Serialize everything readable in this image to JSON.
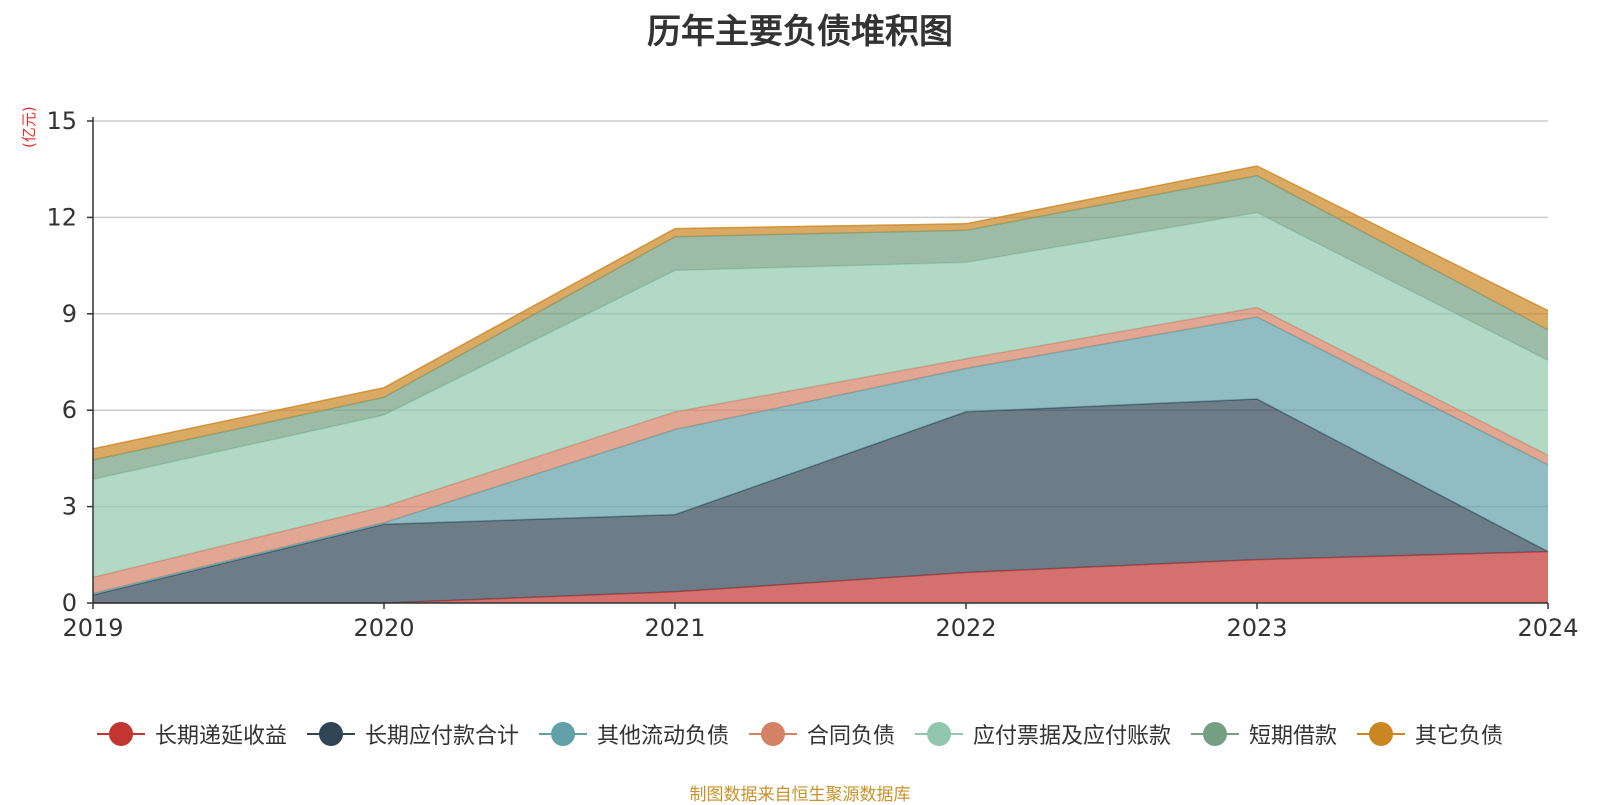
{
  "chart_data": {
    "type": "area",
    "stacked": true,
    "title": "历年主要负债堆积图",
    "ylabel": "(亿元)",
    "xlabel": "",
    "categories": [
      "2019",
      "2020",
      "2021",
      "2022",
      "2023",
      "2024"
    ],
    "ylim": [
      0,
      15
    ],
    "yticks": [
      0,
      3,
      6,
      9,
      12,
      15
    ],
    "grid": true,
    "legend_position": "bottom",
    "series": [
      {
        "name": "长期递延收益",
        "color": "#c23531",
        "values": [
          0.0,
          0.0,
          0.35,
          0.95,
          1.35,
          1.6
        ]
      },
      {
        "name": "长期应付款合计",
        "color": "#2f4554",
        "values": [
          0.25,
          2.45,
          2.4,
          5.0,
          5.0,
          0.0
        ]
      },
      {
        "name": "其他流动负债",
        "color": "#61a0a8",
        "values": [
          0.05,
          0.05,
          2.65,
          1.35,
          2.55,
          2.7
        ]
      },
      {
        "name": "合同负债",
        "color": "#d48265",
        "values": [
          0.5,
          0.5,
          0.55,
          0.3,
          0.3,
          0.3
        ]
      },
      {
        "name": "应付票据及应付账款",
        "color": "#91c7ae",
        "values": [
          3.05,
          2.85,
          4.4,
          3.0,
          2.95,
          2.95
        ]
      },
      {
        "name": "短期借款",
        "color": "#749f83",
        "values": [
          0.6,
          0.55,
          1.05,
          1.0,
          1.15,
          0.95
        ]
      },
      {
        "name": "其它负债",
        "color": "#ca8622",
        "values": [
          0.35,
          0.3,
          0.25,
          0.2,
          0.3,
          0.6
        ]
      }
    ]
  },
  "source_note": "制图数据来自恒生聚源数据库"
}
